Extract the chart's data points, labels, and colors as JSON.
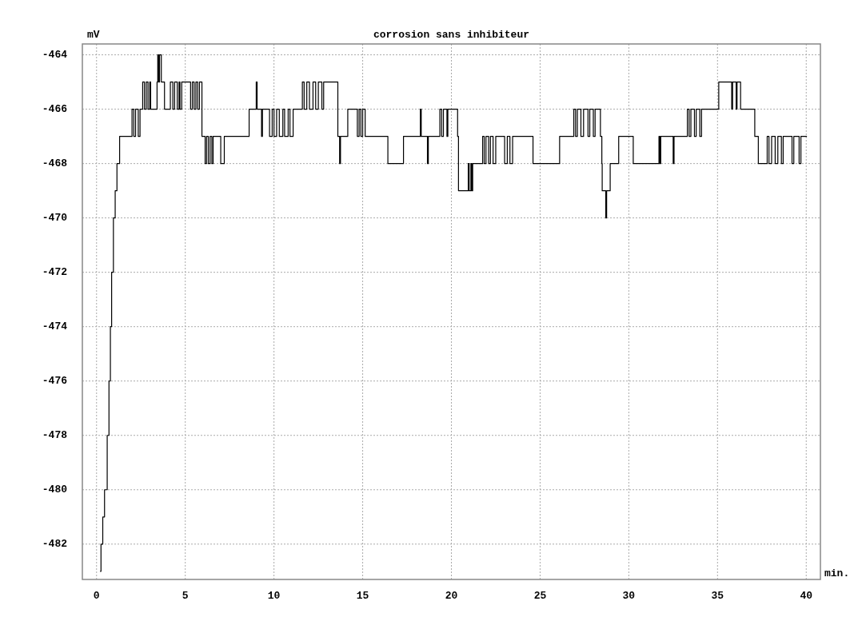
{
  "chart_data": {
    "type": "step",
    "title": "corrosion sans inhibiteur",
    "xlabel": "min.",
    "ylabel": "mV",
    "x": [
      0.2,
      0.25,
      0.35,
      0.45,
      0.6,
      0.7,
      0.78,
      0.85,
      0.95,
      1.05,
      1.15,
      1.3,
      2.0,
      2.1,
      2.2,
      2.35,
      2.45,
      2.6,
      2.7,
      2.8,
      2.9,
      3.0,
      3.05,
      3.41,
      3.45,
      3.5,
      3.55,
      3.65,
      3.83,
      4.16,
      4.3,
      4.4,
      4.55,
      4.65,
      4.7,
      4.8,
      5.3,
      5.4,
      5.5,
      5.6,
      5.7,
      5.8,
      5.94,
      6.12,
      6.2,
      6.3,
      6.4,
      6.5,
      6.57,
      7.0,
      7.2,
      8.6,
      9.0,
      9.05,
      9.3,
      9.35,
      9.75,
      9.9,
      10.0,
      10.15,
      10.3,
      10.5,
      10.6,
      10.8,
      10.9,
      11.08,
      11.6,
      11.7,
      11.85,
      12.0,
      12.2,
      12.35,
      12.5,
      12.7,
      12.8,
      13.6,
      13.7,
      13.75,
      14.16,
      14.7,
      14.8,
      14.9,
      15.0,
      15.14,
      16.42,
      17.3,
      18.25,
      18.3,
      18.65,
      18.7,
      19.35,
      19.45,
      19.55,
      19.75,
      19.8,
      20.35,
      20.4,
      20.95,
      21.0,
      21.1,
      21.15,
      21.2,
      21.76,
      21.85,
      21.95,
      22.1,
      22.2,
      22.35,
      22.5,
      23.0,
      23.15,
      23.3,
      23.45,
      24.6,
      26.1,
      26.9,
      27.0,
      27.1,
      27.3,
      27.45,
      27.7,
      27.8,
      28.0,
      28.1,
      28.4,
      28.48,
      28.5,
      28.7,
      28.75,
      28.95,
      29.43,
      30.25,
      31.7,
      31.75,
      31.8,
      32.5,
      32.55,
      33.3,
      33.4,
      33.5,
      33.7,
      33.8,
      34.0,
      34.1,
      35.07,
      35.8,
      35.85,
      36.05,
      36.1,
      36.3,
      37.1,
      37.3,
      37.8,
      37.9,
      38.05,
      38.25,
      38.4,
      38.6,
      38.7,
      39.2,
      39.3,
      39.6,
      39.7,
      40.04
    ],
    "series": [
      {
        "color": "#000000",
        "values": [
          -483,
          -482,
          -481,
          -480,
          -478,
          -476,
          -474,
          -472,
          -470,
          -469,
          -468,
          -467,
          -466,
          -467,
          -466,
          -467,
          -466,
          -465,
          -466,
          -465,
          -466,
          -465,
          -466,
          -465,
          -464,
          -465,
          -464,
          -465,
          -466,
          -465,
          -466,
          -465,
          -466,
          -465,
          -466,
          -465,
          -466,
          -465,
          -466,
          -465,
          -466,
          -465,
          -467,
          -468,
          -467,
          -468,
          -467,
          -468,
          -467,
          -468,
          -467,
          -466,
          -465,
          -466,
          -467,
          -466,
          -467,
          -466,
          -467,
          -466,
          -467,
          -466,
          -467,
          -466,
          -467,
          -466,
          -465,
          -466,
          -465,
          -466,
          -465,
          -466,
          -465,
          -466,
          -465,
          -467,
          -468,
          -467,
          -466,
          -467,
          -466,
          -467,
          -466,
          -467,
          -468,
          -467,
          -466,
          -467,
          -468,
          -467,
          -466,
          -467,
          -466,
          -467,
          -466,
          -467,
          -469,
          -468,
          -469,
          -468,
          -469,
          -468,
          -467,
          -468,
          -467,
          -468,
          -467,
          -468,
          -467,
          -468,
          -467,
          -468,
          -467,
          -468,
          -467,
          -466,
          -467,
          -466,
          -467,
          -466,
          -467,
          -466,
          -467,
          -466,
          -467,
          -468,
          -469,
          -470,
          -469,
          -468,
          -467,
          -468,
          -467,
          -468,
          -467,
          -468,
          -467,
          -466,
          -467,
          -466,
          -467,
          -466,
          -467,
          -466,
          -465,
          -466,
          -465,
          -466,
          -465,
          -466,
          -467,
          -468,
          -467,
          -468,
          -467,
          -468,
          -467,
          -468,
          -467,
          -468,
          -467,
          -468,
          -467,
          -467
        ]
      }
    ],
    "xlim": [
      -0.8,
      40.8
    ],
    "ylim": [
      -483.3,
      -463.6
    ],
    "xticks": [
      0,
      5,
      10,
      15,
      20,
      25,
      30,
      35,
      40
    ],
    "yticks": [
      -464,
      -466,
      -468,
      -470,
      -472,
      -474,
      -476,
      -478,
      -480,
      -482
    ],
    "grid": true,
    "line_style": "solid",
    "marker": "none"
  }
}
